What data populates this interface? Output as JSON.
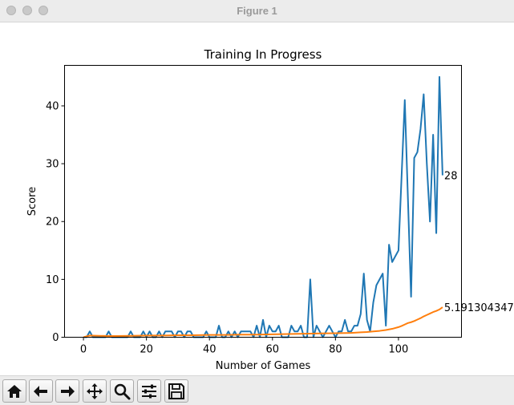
{
  "window": {
    "title": "Figure 1"
  },
  "toolbar": {
    "buttons": [
      {
        "name": "home",
        "icon": "home-icon"
      },
      {
        "name": "back",
        "icon": "arrow-left-icon"
      },
      {
        "name": "forward",
        "icon": "arrow-right-icon"
      },
      {
        "name": "pan",
        "icon": "move-icon"
      },
      {
        "name": "zoom",
        "icon": "magnifier-icon"
      },
      {
        "name": "configure-subplots",
        "icon": "sliders-icon"
      },
      {
        "name": "save",
        "icon": "floppy-disk-icon"
      }
    ]
  },
  "chart_data": {
    "type": "line",
    "title": "Training In Progress",
    "xlabel": "Number of Games",
    "ylabel": "Score",
    "xlim": [
      -6,
      120
    ],
    "ylim": [
      0,
      47
    ],
    "xticks": [
      0,
      20,
      40,
      60,
      80,
      100
    ],
    "yticks": [
      0,
      10,
      20,
      30,
      40
    ],
    "grid": false,
    "series": [
      {
        "color": "#1f77b4",
        "x": [
          0,
          1,
          2,
          3,
          4,
          5,
          6,
          7,
          8,
          9,
          10,
          11,
          12,
          13,
          14,
          15,
          16,
          17,
          18,
          19,
          20,
          21,
          22,
          23,
          24,
          25,
          26,
          27,
          28,
          29,
          30,
          31,
          32,
          33,
          34,
          35,
          36,
          37,
          38,
          39,
          40,
          41,
          42,
          43,
          44,
          45,
          46,
          47,
          48,
          49,
          50,
          51,
          52,
          53,
          54,
          55,
          56,
          57,
          58,
          59,
          60,
          61,
          62,
          63,
          64,
          65,
          66,
          67,
          68,
          69,
          70,
          71,
          72,
          73,
          74,
          75,
          76,
          77,
          78,
          79,
          80,
          81,
          82,
          83,
          84,
          85,
          86,
          87,
          88,
          89,
          90,
          91,
          92,
          93,
          94,
          95,
          96,
          97,
          98,
          99,
          100,
          101,
          102,
          103,
          104,
          105,
          106,
          107,
          108,
          109,
          110,
          111,
          112,
          113,
          114
        ],
        "y": [
          0,
          0,
          1,
          0,
          0,
          0,
          0,
          0,
          1,
          0,
          0,
          0,
          0,
          0,
          0,
          1,
          0,
          0,
          0,
          1,
          0,
          1,
          0,
          0,
          1,
          0,
          1,
          1,
          1,
          0,
          1,
          1,
          0,
          1,
          1,
          0,
          0,
          0,
          0,
          1,
          0,
          0,
          0,
          2,
          0,
          0,
          1,
          0,
          1,
          0,
          1,
          1,
          1,
          1,
          0,
          2,
          0,
          3,
          0,
          2,
          1,
          1,
          2,
          0,
          0,
          0,
          2,
          1,
          1,
          2,
          0,
          0,
          10,
          0,
          2,
          1,
          0,
          1,
          2,
          1,
          0,
          1,
          1,
          3,
          1,
          1,
          2,
          2,
          4,
          11,
          3,
          1,
          6,
          9,
          10,
          11,
          2,
          16,
          13,
          14,
          15,
          28,
          41,
          24,
          7,
          31,
          32,
          36,
          42,
          30,
          20,
          35,
          18,
          45,
          28
        ]
      },
      {
        "color": "#ff7f0e",
        "x": [
          0,
          2,
          5,
          8,
          10,
          15,
          20,
          25,
          30,
          35,
          40,
          45,
          50,
          55,
          60,
          65,
          70,
          75,
          80,
          85,
          88,
          90,
          92,
          94,
          96,
          98,
          100,
          101,
          102,
          103,
          104,
          105,
          106,
          107,
          108,
          109,
          110,
          111,
          112,
          113,
          114
        ],
        "y": [
          0,
          0.3,
          0.25,
          0.2,
          0.2,
          0.25,
          0.3,
          0.3,
          0.35,
          0.35,
          0.4,
          0.4,
          0.45,
          0.45,
          0.5,
          0.55,
          0.6,
          0.65,
          0.7,
          0.75,
          0.85,
          0.9,
          1.0,
          1.1,
          1.25,
          1.45,
          1.75,
          1.95,
          2.2,
          2.45,
          2.6,
          2.8,
          3.05,
          3.3,
          3.6,
          3.85,
          4.1,
          4.35,
          4.55,
          4.8,
          5.19
        ]
      }
    ],
    "annotations": [
      {
        "text": "28",
        "x": 114,
        "y": 28
      },
      {
        "text": "5.191304347",
        "x": 114,
        "y": 5.19
      }
    ]
  }
}
